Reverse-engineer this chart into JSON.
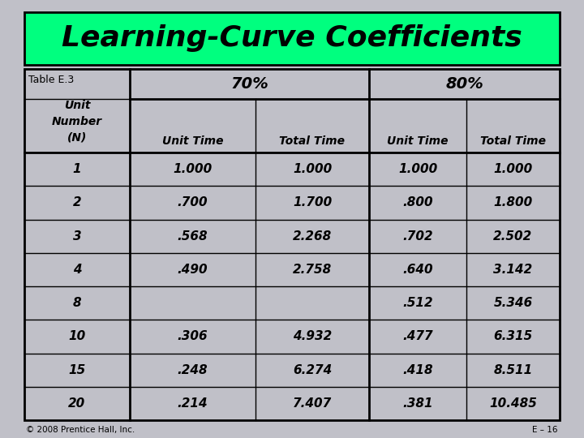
{
  "title": "Learning-Curve Coefficients",
  "title_bg": "#00FF7F",
  "subtitle": "Table E.3",
  "footer_left": "© 2008 Prentice Hall, Inc.",
  "footer_right": "E – 16",
  "fig_bg": "#C0C0C8",
  "col_headers_70": "70%",
  "col_headers_80": "80%",
  "row_header": "Unit\nNumber\n(N)",
  "col_subheaders": [
    "Unit Time",
    "Total Time",
    "Unit Time",
    "Total Time"
  ],
  "unit_numbers": [
    "1",
    "2",
    "3",
    "4",
    "8",
    "10",
    "15",
    "20"
  ],
  "data_70_unit": [
    "1.000",
    ".700",
    ".568",
    ".490",
    "",
    ".306",
    ".248",
    ".214"
  ],
  "data_70_total": [
    "1.000",
    "1.700",
    "2.268",
    "2.758",
    "",
    "4.932",
    "6.274",
    "7.407"
  ],
  "data_80_unit": [
    "1.000",
    ".800",
    ".702",
    ".640",
    ".512",
    ".477",
    ".418",
    ".381"
  ],
  "data_80_total": [
    "1.000",
    "1.800",
    "2.502",
    "3.142",
    "5.346",
    "6.315",
    "8.511",
    "10.485"
  ]
}
